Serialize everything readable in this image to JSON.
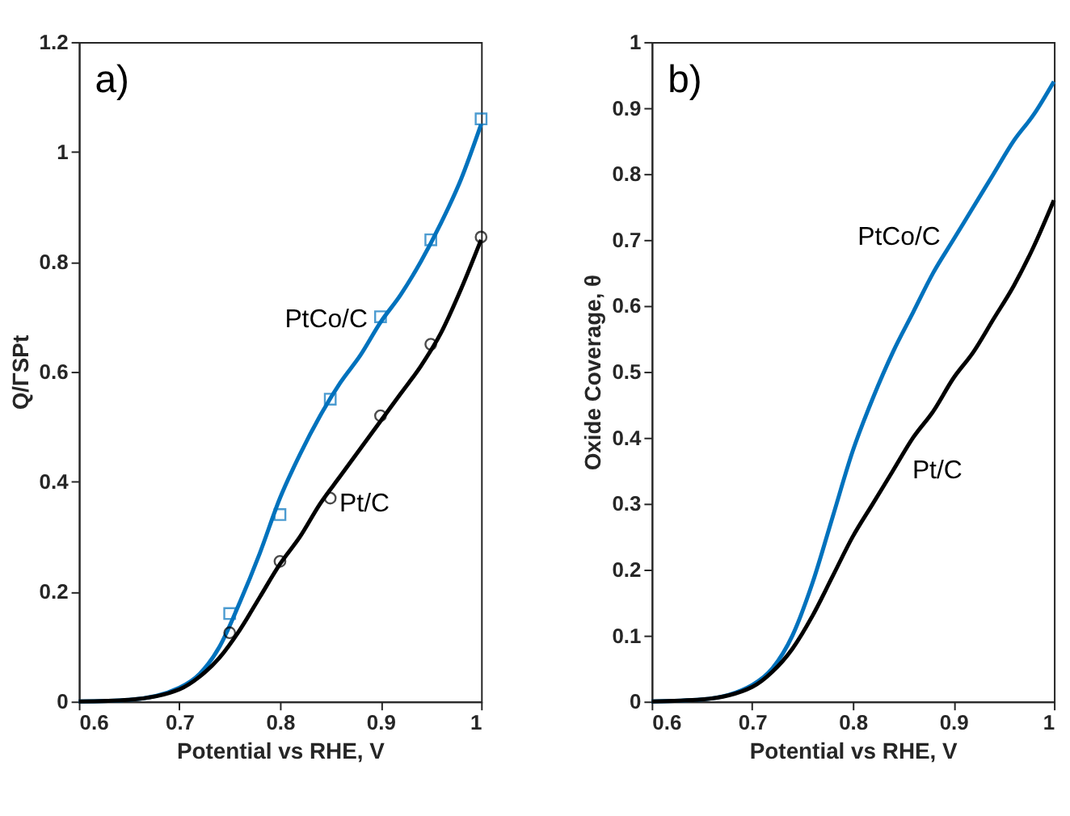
{
  "chart_data": [
    {
      "type": "line",
      "xlabel": "Potential vs RHE, V",
      "ylabel": "Q/ΓSPt",
      "annotations": [
        "a)"
      ],
      "xlim": [
        0.6,
        1.0
      ],
      "ylim": [
        0,
        1.2
      ],
      "xticks": [
        0.6,
        0.7,
        0.8,
        0.9,
        1
      ],
      "yticks": [
        0,
        0.2,
        0.4,
        0.6,
        0.8,
        1,
        1.2
      ],
      "grid": false,
      "series": [
        {
          "name": "PtCo/C",
          "color": "#0072bd",
          "marker": "none",
          "x": [
            0.6,
            0.65,
            0.7,
            0.72,
            0.74,
            0.76,
            0.78,
            0.8,
            0.82,
            0.84,
            0.86,
            0.88,
            0.9,
            0.92,
            0.94,
            0.96,
            0.98,
            1.0
          ],
          "values": [
            0,
            0.003,
            0.025,
            0.05,
            0.1,
            0.18,
            0.27,
            0.37,
            0.45,
            0.52,
            0.58,
            0.63,
            0.69,
            0.74,
            0.8,
            0.87,
            0.95,
            1.05
          ]
        },
        {
          "name": "Pt/C",
          "color": "#000000",
          "marker": "none",
          "x": [
            0.6,
            0.65,
            0.7,
            0.72,
            0.74,
            0.76,
            0.78,
            0.8,
            0.82,
            0.84,
            0.86,
            0.88,
            0.9,
            0.92,
            0.94,
            0.96,
            0.98,
            1.0
          ],
          "values": [
            0,
            0.003,
            0.022,
            0.045,
            0.08,
            0.13,
            0.19,
            0.25,
            0.3,
            0.36,
            0.41,
            0.46,
            0.51,
            0.56,
            0.61,
            0.67,
            0.75,
            0.84
          ]
        },
        {
          "type": "scatter",
          "color": "#0072bd",
          "marker": "square",
          "x": [
            0.75,
            0.8,
            0.85,
            0.9,
            0.95,
            1.0
          ],
          "values": [
            0.16,
            0.34,
            0.55,
            0.7,
            0.84,
            1.06
          ]
        },
        {
          "type": "scatter",
          "color": "#000000",
          "marker": "circle",
          "x": [
            0.75,
            0.8,
            0.85,
            0.9,
            0.95,
            1.0
          ],
          "values": [
            0.125,
            0.255,
            0.37,
            0.52,
            0.65,
            0.845
          ]
        }
      ]
    },
    {
      "type": "line",
      "xlabel": "Potential vs RHE, V",
      "ylabel": "Oxide Coverage, θ",
      "annotations": [
        "b)"
      ],
      "xlim": [
        0.6,
        1.0
      ],
      "ylim": [
        0,
        1
      ],
      "xticks": [
        0.6,
        0.7,
        0.8,
        0.9,
        1
      ],
      "yticks": [
        0,
        0.1,
        0.2,
        0.3,
        0.4,
        0.5,
        0.6,
        0.7,
        0.8,
        0.9,
        1
      ],
      "grid": false,
      "series": [
        {
          "name": "PtCo/C",
          "color": "#0072bd",
          "marker": "none",
          "x": [
            0.6,
            0.65,
            0.7,
            0.72,
            0.74,
            0.76,
            0.78,
            0.8,
            0.82,
            0.84,
            0.86,
            0.88,
            0.9,
            0.92,
            0.94,
            0.96,
            0.98,
            1.0
          ],
          "values": [
            0,
            0.003,
            0.025,
            0.05,
            0.1,
            0.18,
            0.28,
            0.38,
            0.46,
            0.53,
            0.59,
            0.65,
            0.7,
            0.75,
            0.8,
            0.85,
            0.89,
            0.94
          ]
        },
        {
          "name": "Pt/C",
          "color": "#000000",
          "marker": "none",
          "x": [
            0.6,
            0.65,
            0.7,
            0.72,
            0.74,
            0.76,
            0.78,
            0.8,
            0.82,
            0.84,
            0.86,
            0.88,
            0.9,
            0.92,
            0.94,
            0.96,
            0.98,
            1.0
          ],
          "values": [
            0,
            0.003,
            0.022,
            0.045,
            0.08,
            0.13,
            0.19,
            0.25,
            0.3,
            0.35,
            0.4,
            0.44,
            0.49,
            0.53,
            0.58,
            0.63,
            0.69,
            0.76
          ]
        }
      ]
    }
  ]
}
